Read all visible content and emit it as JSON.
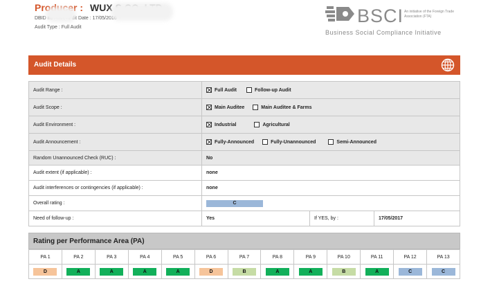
{
  "header": {
    "producer_label": "Producer :",
    "producer_name": "WUX                   S CO.,LTD",
    "meta_line_1": "DBID              nd Audit Id                                    dit Date : 17/05/2016",
    "meta_line_2": "Audit Type : Full Audit"
  },
  "logo": {
    "text": "BSCI",
    "initiative": "An initiative of the Foreign Trade Association (FTA)",
    "subtitle": "Business Social Compliance Initiative"
  },
  "section": {
    "title": "Audit Details",
    "icon": "globe-icon"
  },
  "details": {
    "audit_range": {
      "label": "Audit Range :",
      "options": [
        {
          "label": "Full Audit",
          "checked": true
        },
        {
          "label": "Follow-up Audit",
          "checked": false
        }
      ]
    },
    "audit_scope": {
      "label": "Audit Scope :",
      "options": [
        {
          "label": "Main Auditee",
          "checked": true
        },
        {
          "label": "Main Auditee & Farms",
          "checked": false
        }
      ]
    },
    "audit_environment": {
      "label": "Audit Environment :",
      "options": [
        {
          "label": "Industrial",
          "checked": true
        },
        {
          "label": "Agricultural",
          "checked": false
        }
      ]
    },
    "audit_announcement": {
      "label": "Audit Announcement :",
      "options": [
        {
          "label": "Fully-Announced",
          "checked": true
        },
        {
          "label": "Fully-Unannounced",
          "checked": false
        },
        {
          "label": "Semi-Announced",
          "checked": false
        }
      ]
    },
    "ruc": {
      "label": "Random Unannounced Check (RUC) :",
      "value": "No"
    },
    "audit_extent": {
      "label": "Audit extent (if applicable) :",
      "value": "none"
    },
    "interferences": {
      "label": "Audit interferences or contingencies (if applicable) :",
      "value": "none"
    },
    "overall_rating": {
      "label": "Overall rating :",
      "value": "C",
      "color": "#9bb7d9"
    },
    "follow_up": {
      "label": "Need of follow-up :",
      "value": "Yes",
      "if_yes_label": "If YES, by :",
      "date": "17/05/2017"
    }
  },
  "pa": {
    "title": "Rating per Performance Area (PA)",
    "areas": [
      {
        "name": "PA 1",
        "rating": "D",
        "color": "#f6c49a"
      },
      {
        "name": "PA 2",
        "rating": "A",
        "color": "#12b05a"
      },
      {
        "name": "PA 3",
        "rating": "A",
        "color": "#12b05a"
      },
      {
        "name": "PA 4",
        "rating": "A",
        "color": "#12b05a"
      },
      {
        "name": "PA 5",
        "rating": "A",
        "color": "#12b05a"
      },
      {
        "name": "PA 6",
        "rating": "D",
        "color": "#f6c49a"
      },
      {
        "name": "PA 7",
        "rating": "B",
        "color": "#c6dca5"
      },
      {
        "name": "PA 8",
        "rating": "A",
        "color": "#12b05a"
      },
      {
        "name": "PA 9",
        "rating": "A",
        "color": "#12b05a"
      },
      {
        "name": "PA 10",
        "rating": "B",
        "color": "#c6dca5"
      },
      {
        "name": "PA 11",
        "rating": "A",
        "color": "#12b05a"
      },
      {
        "name": "PA 12",
        "rating": "C",
        "color": "#9bb7d9"
      },
      {
        "name": "PA 13",
        "rating": "C",
        "color": "#9bb7d9"
      }
    ]
  }
}
